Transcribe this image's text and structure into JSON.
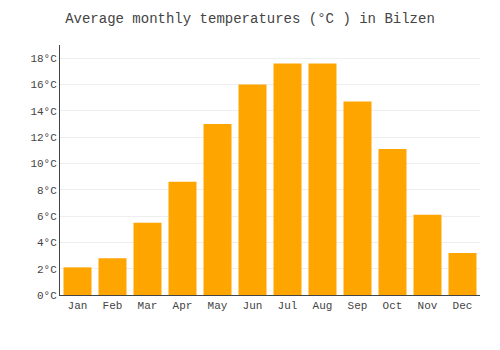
{
  "chart_data": {
    "type": "bar",
    "title": "Average monthly temperatures (°C ) in Bilzen",
    "categories": [
      "Jan",
      "Feb",
      "Mar",
      "Apr",
      "May",
      "Jun",
      "Jul",
      "Aug",
      "Sep",
      "Oct",
      "Nov",
      "Dec"
    ],
    "values": [
      2.1,
      2.8,
      5.5,
      8.6,
      13.0,
      16.0,
      17.6,
      17.6,
      14.7,
      11.1,
      6.1,
      3.2
    ],
    "color": "#FFA500",
    "ylim": [
      0,
      19
    ],
    "yticks": [
      {
        "value": 0,
        "label": "0°C"
      },
      {
        "value": 2,
        "label": "2°C"
      },
      {
        "value": 4,
        "label": "4°C"
      },
      {
        "value": 6,
        "label": "6°C"
      },
      {
        "value": 8,
        "label": "8°C"
      },
      {
        "value": 10,
        "label": "10°C"
      },
      {
        "value": 12,
        "label": "12°C"
      },
      {
        "value": 14,
        "label": "14°C"
      },
      {
        "value": 16,
        "label": "16°C"
      },
      {
        "value": 18,
        "label": "18°C"
      }
    ],
    "grid": true
  }
}
